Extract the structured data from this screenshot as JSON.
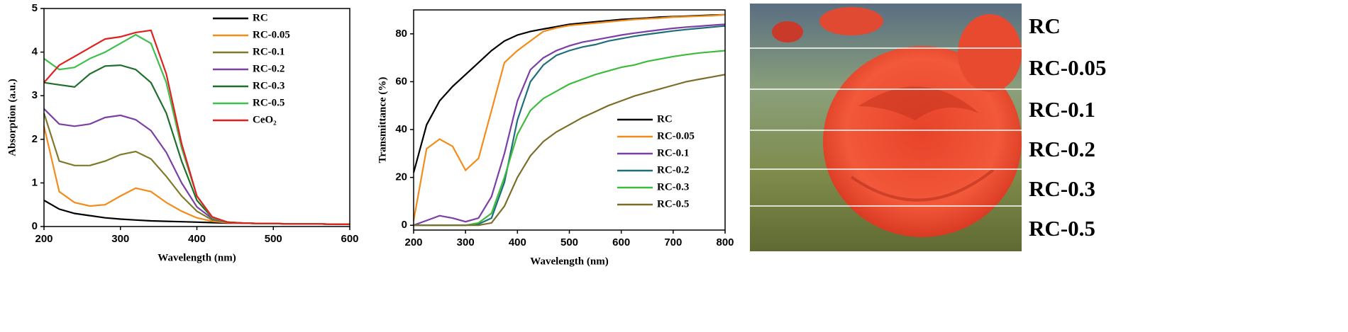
{
  "chart_data": [
    {
      "type": "line",
      "legend": "upper right",
      "x_label": "Wavelength (nm)",
      "y_label": "Absorption (a.u.)",
      "x": [
        200,
        220,
        240,
        260,
        280,
        300,
        320,
        340,
        360,
        380,
        400,
        420,
        440,
        460,
        480,
        500,
        520,
        540,
        560,
        580,
        600
      ],
      "xlim": [
        200,
        600
      ],
      "xticks": [
        200,
        300,
        400,
        500,
        600
      ],
      "ylim": [
        0,
        5
      ],
      "yticks": [
        0,
        1,
        2,
        3,
        4,
        5
      ],
      "series": [
        {
          "name": "RC",
          "color": "#000000",
          "values": [
            0.6,
            0.4,
            0.3,
            0.25,
            0.2,
            0.17,
            0.15,
            0.13,
            0.12,
            0.11,
            0.1,
            0.09,
            0.08,
            0.08,
            0.07,
            0.07,
            0.06,
            0.06,
            0.06,
            0.05,
            0.05
          ]
        },
        {
          "name": "RC-0.05",
          "color": "#f28c1b",
          "values": [
            2.3,
            0.8,
            0.55,
            0.47,
            0.5,
            0.7,
            0.88,
            0.8,
            0.55,
            0.35,
            0.2,
            0.12,
            0.09,
            0.08,
            0.07,
            0.07,
            0.06,
            0.06,
            0.06,
            0.05,
            0.05
          ]
        },
        {
          "name": "RC-0.1",
          "color": "#7f7a2a",
          "values": [
            2.6,
            1.5,
            1.4,
            1.4,
            1.5,
            1.65,
            1.72,
            1.55,
            1.15,
            0.7,
            0.35,
            0.15,
            0.1,
            0.08,
            0.07,
            0.07,
            0.06,
            0.06,
            0.06,
            0.05,
            0.05
          ]
        },
        {
          "name": "RC-0.2",
          "color": "#7b3fa6",
          "values": [
            2.7,
            2.35,
            2.3,
            2.35,
            2.5,
            2.55,
            2.45,
            2.2,
            1.7,
            1.0,
            0.45,
            0.18,
            0.1,
            0.08,
            0.07,
            0.07,
            0.06,
            0.06,
            0.06,
            0.05,
            0.05
          ]
        },
        {
          "name": "RC-0.3",
          "color": "#1f6e2a",
          "values": [
            3.3,
            3.25,
            3.2,
            3.5,
            3.68,
            3.7,
            3.6,
            3.3,
            2.6,
            1.5,
            0.6,
            0.2,
            0.1,
            0.08,
            0.07,
            0.07,
            0.06,
            0.06,
            0.06,
            0.05,
            0.05
          ]
        },
        {
          "name": "RC-0.5",
          "color": "#3fbf4f",
          "values": [
            3.85,
            3.6,
            3.65,
            3.85,
            4.0,
            4.2,
            4.4,
            4.2,
            3.3,
            1.8,
            0.7,
            0.2,
            0.1,
            0.08,
            0.07,
            0.07,
            0.06,
            0.06,
            0.06,
            0.05,
            0.05
          ]
        },
        {
          "name": "CeO₂",
          "color": "#e02020",
          "values": [
            3.3,
            3.7,
            3.9,
            4.1,
            4.3,
            4.35,
            4.45,
            4.5,
            3.5,
            1.9,
            0.7,
            0.22,
            0.1,
            0.08,
            0.07,
            0.07,
            0.06,
            0.06,
            0.06,
            0.05,
            0.05
          ]
        }
      ]
    },
    {
      "type": "line",
      "legend": "lower right",
      "x_label": "Wavelength (nm)",
      "y_label": "Transmittance (%)",
      "x": [
        200,
        225,
        250,
        275,
        300,
        325,
        350,
        375,
        400,
        425,
        450,
        475,
        500,
        525,
        550,
        575,
        600,
        625,
        650,
        675,
        700,
        725,
        750,
        775,
        800
      ],
      "xlim": [
        200,
        800
      ],
      "xticks": [
        200,
        300,
        400,
        500,
        600,
        700,
        800
      ],
      "ylim": [
        -2,
        90
      ],
      "yticks": [
        0,
        20,
        40,
        60,
        80
      ],
      "series": [
        {
          "name": "RC",
          "color": "#000000",
          "values": [
            22,
            42,
            52,
            58,
            63,
            68,
            73,
            77,
            79.5,
            81,
            82,
            83,
            84,
            84.5,
            85,
            85.5,
            86,
            86.3,
            86.6,
            87,
            87.2,
            87.4,
            87.6,
            87.8,
            88
          ]
        },
        {
          "name": "RC-0.05",
          "color": "#f28c1b",
          "values": [
            2,
            32,
            36,
            33,
            23,
            28,
            48,
            68,
            73,
            77,
            81,
            82.5,
            83.5,
            84,
            84.5,
            85,
            85.5,
            86,
            86.3,
            86.6,
            87,
            87.2,
            87.4,
            87.6,
            88
          ]
        },
        {
          "name": "RC-0.1",
          "color": "#7b3fa6",
          "values": [
            0,
            2,
            4,
            3,
            1.5,
            3,
            12,
            30,
            52,
            65,
            70,
            73,
            75,
            76.5,
            77.5,
            78.5,
            79.5,
            80.3,
            81,
            81.7,
            82.3,
            82.8,
            83.2,
            83.6,
            84
          ]
        },
        {
          "name": "RC-0.2",
          "color": "#1f6f7a",
          "values": [
            0,
            0,
            0,
            0,
            0,
            0.5,
            3,
            18,
            44,
            60,
            67,
            71,
            73,
            74.5,
            75.5,
            77,
            78,
            79,
            79.8,
            80.5,
            81.2,
            81.8,
            82.3,
            82.8,
            83.3
          ]
        },
        {
          "name": "RC-0.3",
          "color": "#3dbb3d",
          "values": [
            0,
            0,
            0,
            0,
            0,
            1,
            5,
            20,
            38,
            48,
            53,
            56,
            59,
            61,
            63,
            64.5,
            66,
            67,
            68.5,
            69.5,
            70.5,
            71.3,
            72,
            72.5,
            73
          ]
        },
        {
          "name": "RC-0.5",
          "color": "#7a6f2a",
          "values": [
            0,
            0,
            0,
            0,
            0,
            0,
            1,
            8,
            20,
            29,
            35,
            39,
            42,
            45,
            47.5,
            50,
            52,
            54,
            55.5,
            57,
            58.5,
            60,
            61,
            62,
            63
          ]
        }
      ]
    }
  ],
  "photo_labels": [
    "RC",
    "RC-0.05",
    "RC-0.1",
    "RC-0.2",
    "RC-0.3",
    "RC-0.5"
  ]
}
